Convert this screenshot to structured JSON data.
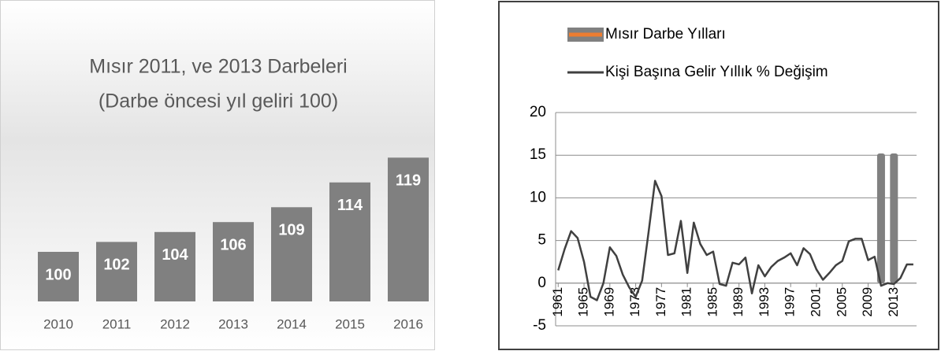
{
  "chart_data": [
    {
      "type": "bar",
      "title": "Mısır 2011, ve 2013 Darbeleri",
      "subtitle": "(Darbe öncesi yıl geliri 100)",
      "categories": [
        "2010",
        "2011",
        "2012",
        "2013",
        "2014",
        "2015",
        "2016"
      ],
      "values": [
        100,
        102,
        104,
        106,
        109,
        114,
        119
      ],
      "color": "#808080",
      "ylim": [
        90,
        120
      ]
    },
    {
      "type": "line",
      "x": [
        1961,
        1962,
        1963,
        1964,
        1965,
        1966,
        1967,
        1968,
        1969,
        1970,
        1971,
        1972,
        1973,
        1974,
        1975,
        1976,
        1977,
        1978,
        1979,
        1980,
        1981,
        1982,
        1983,
        1984,
        1985,
        1986,
        1987,
        1988,
        1989,
        1990,
        1991,
        1992,
        1993,
        1994,
        1995,
        1996,
        1997,
        1998,
        1999,
        2000,
        2001,
        2002,
        2003,
        2004,
        2005,
        2006,
        2007,
        2008,
        2009,
        2010,
        2011,
        2012,
        2013,
        2014,
        2015,
        2016
      ],
      "xlim": [
        1960.6,
        2016.5
      ],
      "xticks": [
        1961,
        1965,
        1969,
        1973,
        1977,
        1981,
        1985,
        1989,
        1993,
        1997,
        2001,
        2005,
        2009,
        2013
      ],
      "ylim": [
        -5,
        20
      ],
      "yticks": [
        -5,
        0,
        5,
        10,
        15,
        20
      ],
      "grid": true,
      "series": [
        {
          "name": "Mısır Darbe Yılları",
          "type": "bar",
          "color": "#ed7d31",
          "bar_color": "#808080",
          "values": [
            null,
            null,
            null,
            null,
            null,
            null,
            null,
            null,
            null,
            null,
            null,
            null,
            null,
            null,
            null,
            null,
            null,
            null,
            null,
            null,
            null,
            null,
            null,
            null,
            null,
            null,
            null,
            null,
            null,
            null,
            null,
            null,
            null,
            null,
            null,
            null,
            null,
            null,
            null,
            null,
            null,
            null,
            null,
            null,
            null,
            null,
            null,
            null,
            null,
            null,
            15.2,
            null,
            15.2,
            null,
            null,
            null
          ]
        },
        {
          "name": "Kişi Başına Gelir Yıllık % Değişim",
          "type": "line",
          "color": "#404040",
          "values": [
            1.5,
            4,
            6.1,
            5.3,
            2.5,
            -1.6,
            -2,
            0,
            4.2,
            3.2,
            1,
            -0.5,
            -1.6,
            0.3,
            6,
            12,
            10.2,
            3.3,
            3.5,
            7.3,
            1.2,
            7.1,
            4.6,
            3.3,
            3.7,
            -0.1,
            -0.3,
            2.4,
            2.2,
            3,
            -1.2,
            2.1,
            0.8,
            1.9,
            2.6,
            3,
            3.5,
            2.1,
            4.1,
            3.4,
            1.6,
            0.4,
            1.2,
            2.1,
            2.6,
            4.9,
            5.2,
            5.2,
            2.7,
            3.1,
            -0.3,
            0,
            -0.1,
            0.6,
            2.2,
            2.2
          ]
        }
      ]
    }
  ]
}
